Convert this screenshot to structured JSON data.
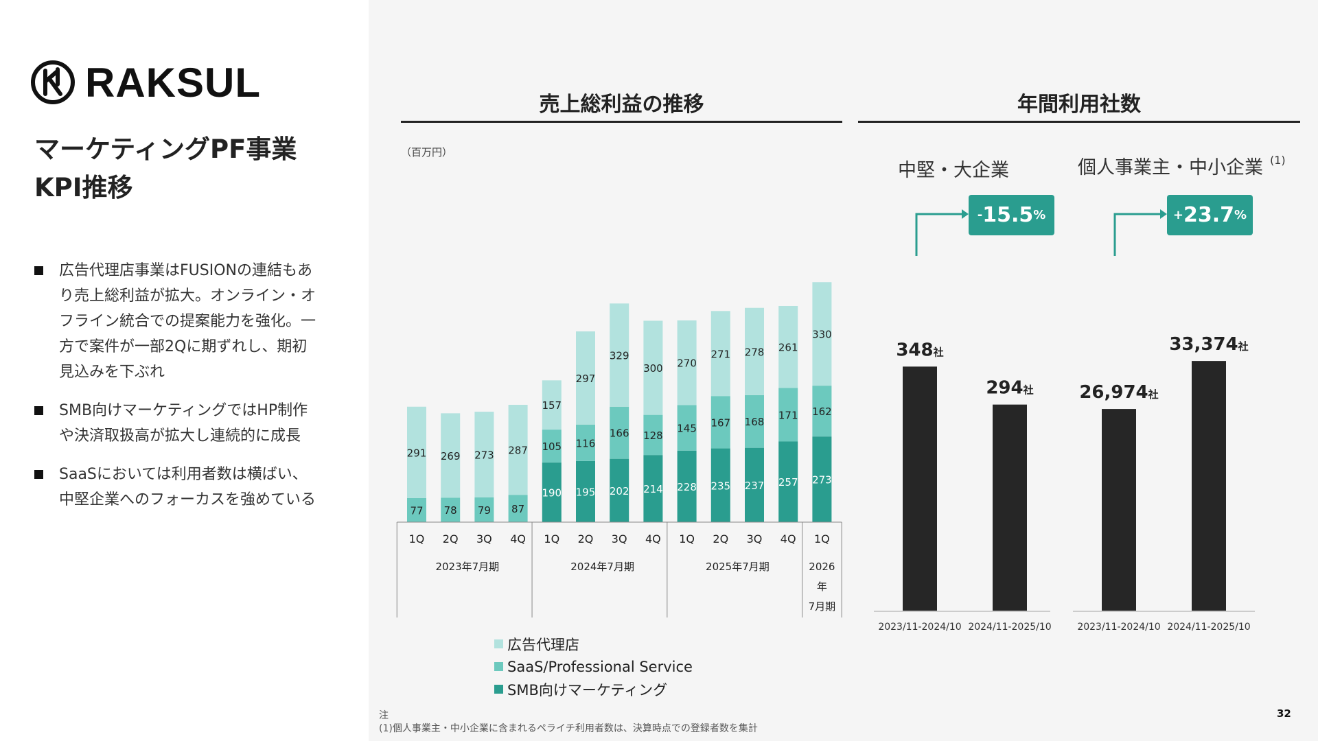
{
  "logo": {
    "name": "RAKSUL"
  },
  "page": {
    "title_line1": "マーケティングPF事業",
    "title_line2": "KPI推移",
    "number": "32"
  },
  "bullets": [
    {
      "line1": "広告代理店事業はFUSIONの連結もあ",
      "line2": "り売上総利益が拡大。オンライン・オ",
      "line3": "フライン統合での提案能力を強化。一",
      "line4": "方で案件が一部2Qに期ずれし、期初",
      "line5": "見込みを下ぶれ"
    },
    {
      "line1": "SMB向けマーケティングではHP制作",
      "line2": "や決済取扱高が拡大し連続的に成長"
    },
    {
      "line1": "SaaSにおいては利用者数は横ばい、",
      "line2": "中堅企業へのフォーカスを強めている"
    }
  ],
  "left_section": {
    "title": "売上総利益の推移",
    "unit": "（百万円）"
  },
  "right_section": {
    "title": "年間利用社数",
    "group1": {
      "label": "中堅・大企業",
      "change_sign": "-",
      "change_value": "15.5",
      "change_unit": "%"
    },
    "group2": {
      "label": "個人事業主・中小企業",
      "footnote_marker": "(1)",
      "change_sign": "+",
      "change_value": "23.7",
      "change_unit": "%"
    }
  },
  "colors": {
    "smb": "#2a9d8f",
    "saas": "#6cc9be",
    "agency": "#b2e2de",
    "bar_dark": "#262626",
    "accent": "#2a9d8f"
  },
  "chart_data": [
    {
      "type": "bar",
      "stacked": true,
      "title": "売上総利益の推移",
      "ylabel": "（百万円）",
      "categories": [
        "1Q",
        "2Q",
        "3Q",
        "4Q",
        "1Q",
        "2Q",
        "3Q",
        "4Q",
        "1Q",
        "2Q",
        "3Q",
        "4Q",
        "1Q"
      ],
      "fiscal_years": [
        {
          "label": "2023年7月期",
          "count": 4
        },
        {
          "label": "2024年7月期",
          "count": 4
        },
        {
          "label": "2025年7月期",
          "count": 4
        },
        {
          "label": "2026年7月期",
          "label_lines": [
            "2026",
            "年",
            "7月期"
          ],
          "count": 1
        }
      ],
      "series": [
        {
          "name": "SMB向けマーケティング",
          "values": [
            null,
            null,
            null,
            null,
            190,
            195,
            202,
            214,
            228,
            235,
            237,
            257,
            273
          ],
          "color": "#2a9d8f"
        },
        {
          "name": "SaaS/Professional Service",
          "values": [
            77,
            78,
            79,
            87,
            105,
            116,
            166,
            128,
            145,
            167,
            168,
            171,
            162
          ],
          "color": "#6cc9be"
        },
        {
          "name": "広告代理店",
          "values": [
            291,
            269,
            273,
            287,
            157,
            297,
            329,
            300,
            270,
            271,
            278,
            261,
            330
          ],
          "color": "#b2e2de"
        }
      ],
      "legend": [
        "広告代理店",
        "SaaS/Professional Service",
        "SMB向けマーケティング"
      ],
      "ylim": [
        0,
        800
      ]
    },
    {
      "type": "bar",
      "title": "中堅・大企業",
      "categories": [
        "2023/11-2024/10",
        "2024/11-2025/10"
      ],
      "values": [
        348,
        294
      ],
      "value_labels": [
        "348",
        "294"
      ],
      "value_suffix": "社",
      "ylim": [
        0,
        400
      ]
    },
    {
      "type": "bar",
      "title": "個人事業主・中小企業",
      "categories": [
        "2023/11-2024/10",
        "2024/11-2025/10"
      ],
      "values": [
        26974,
        33374
      ],
      "value_labels": [
        "26,974",
        "33,374"
      ],
      "value_suffix": "社",
      "ylim": [
        0,
        37500
      ]
    }
  ],
  "notes": {
    "heading": "注",
    "line1": "(1)個人事業主・中小企業に含まれるペライチ利用者数は、決算時点での登録者数を集計"
  }
}
